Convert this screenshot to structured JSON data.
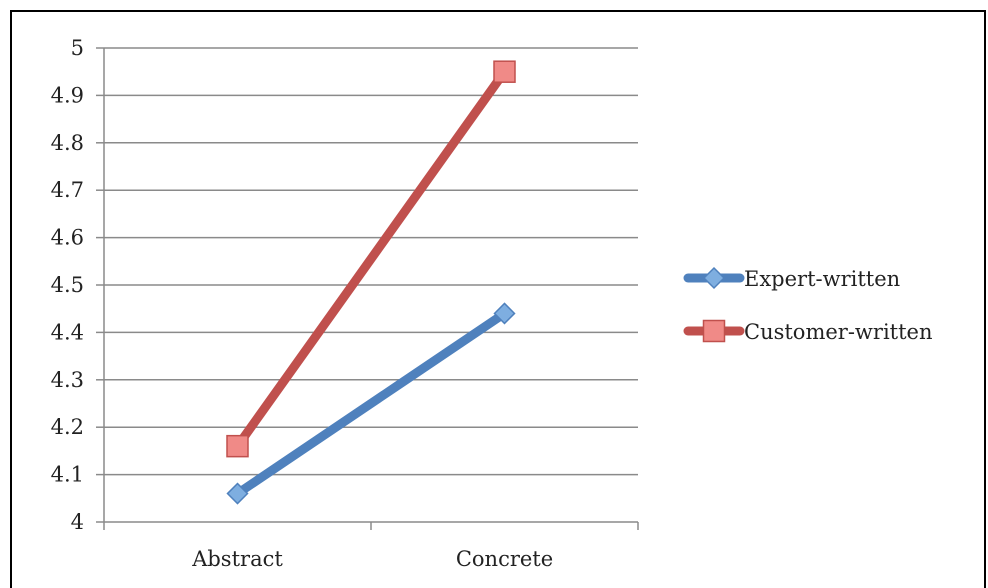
{
  "chart_data": {
    "type": "line",
    "categories": [
      "Abstract",
      "Concrete"
    ],
    "series": [
      {
        "name": "Expert-written",
        "values": [
          4.06,
          4.44
        ],
        "color": "#4f81bd",
        "marker": "diamond"
      },
      {
        "name": "Customer-written",
        "values": [
          4.16,
          4.95
        ],
        "color": "#c0504d",
        "marker": "square"
      }
    ],
    "y_ticks": [
      "4",
      "4.1",
      "4.2",
      "4.3",
      "4.4",
      "4.5",
      "4.6",
      "4.7",
      "4.8",
      "4.9",
      "5"
    ],
    "ylim": [
      4,
      5
    ],
    "grid": true,
    "legend_position": "right"
  }
}
